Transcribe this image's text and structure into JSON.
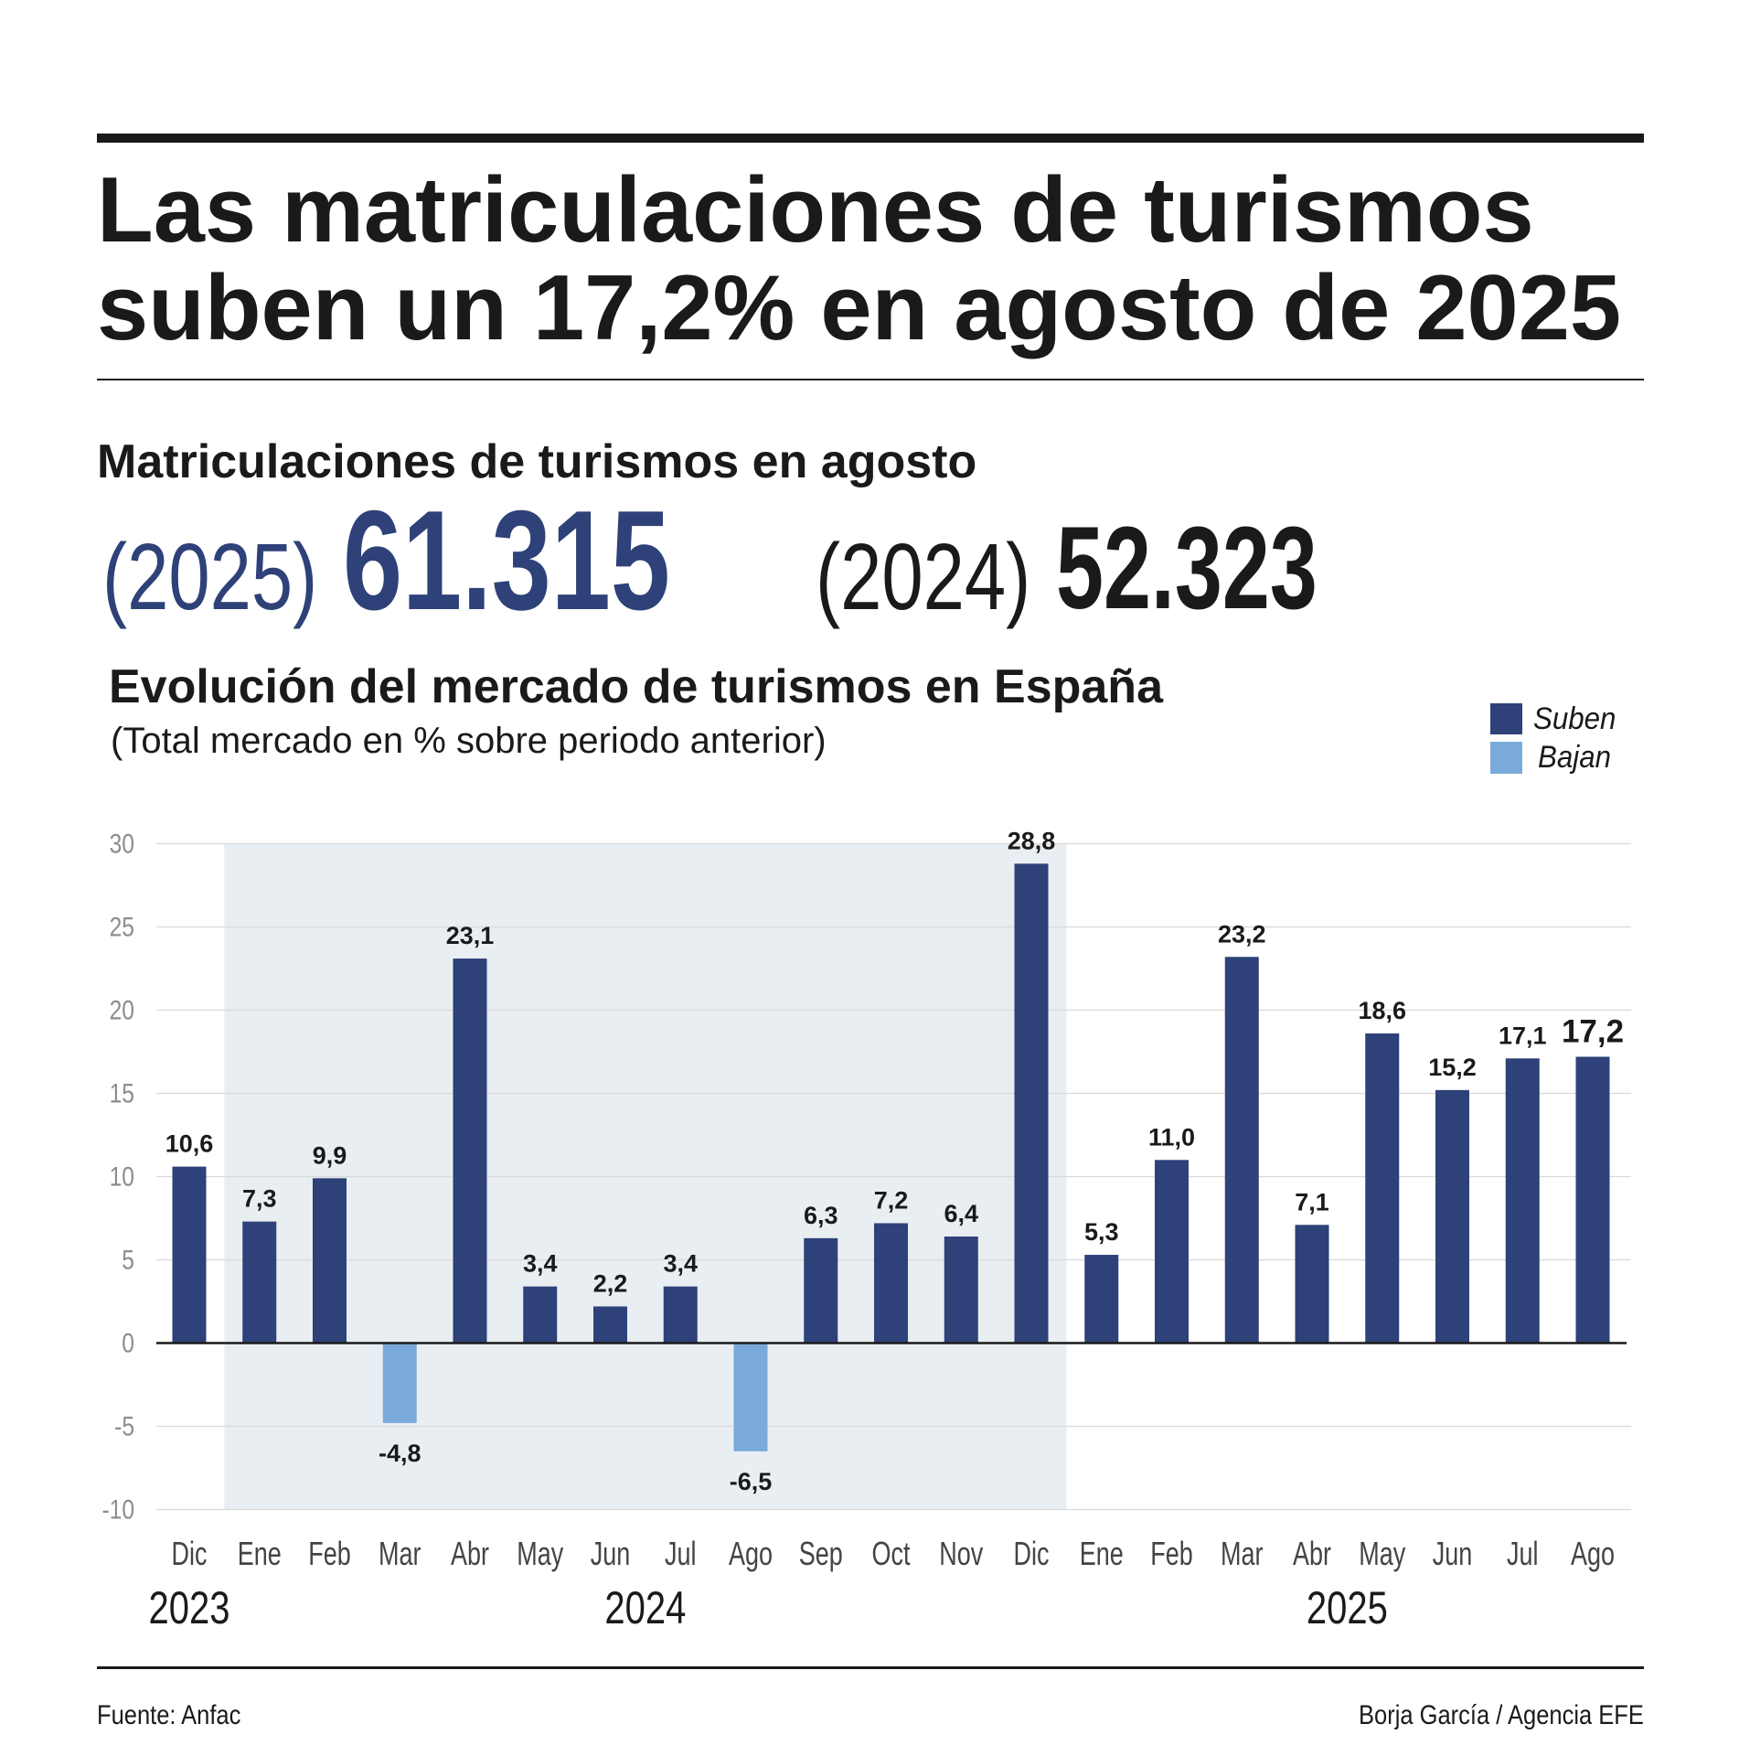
{
  "header": {
    "title_line1": "Las matriculaciones de turismos",
    "title_line2": "suben un 17,2% en agosto de 2025"
  },
  "summary": {
    "heading": "Matriculaciones de turismos en agosto",
    "current": {
      "year_label": "(2025)",
      "value": "61.315",
      "color": "#2e4178"
    },
    "previous": {
      "year_label": "(2024)",
      "value": "52.323",
      "color": "#1a1a1a"
    }
  },
  "chart_data": {
    "type": "bar",
    "title": "Evolución del mercado de turismos en España",
    "subtitle": "(Total mercado en % sobre periodo anterior)",
    "categories": [
      "Dic",
      "Ene",
      "Feb",
      "Mar",
      "Abr",
      "May",
      "Jun",
      "Jul",
      "Ago",
      "Sep",
      "Oct",
      "Nov",
      "Dic",
      "Ene",
      "Feb",
      "Mar",
      "Abr",
      "May",
      "Jun",
      "Jul",
      "Ago"
    ],
    "year_groups": [
      {
        "label": "2023",
        "count": 1
      },
      {
        "label": "2024",
        "count": 12
      },
      {
        "label": "2025",
        "count": 8
      }
    ],
    "values": [
      10.6,
      7.3,
      9.9,
      -4.8,
      23.1,
      3.4,
      2.2,
      3.4,
      -6.5,
      6.3,
      7.2,
      6.4,
      28.8,
      5.3,
      11.0,
      23.2,
      7.1,
      18.6,
      15.2,
      17.1,
      17.2
    ],
    "ylim": [
      -10,
      30
    ],
    "yticks": [
      30,
      25,
      20,
      15,
      10,
      5,
      0,
      -5,
      -10
    ],
    "grid": true,
    "legend_position": "top-right",
    "legend": [
      {
        "label": "Suben",
        "color": "#2e4178"
      },
      {
        "label": "Bajan",
        "color": "#7aaad9"
      }
    ],
    "shaded_band": {
      "year_group": 1,
      "color": "#e9eef3"
    }
  },
  "footer": {
    "source": "Fuente: Anfac",
    "credit": "Borja García / Agencia EFE"
  }
}
